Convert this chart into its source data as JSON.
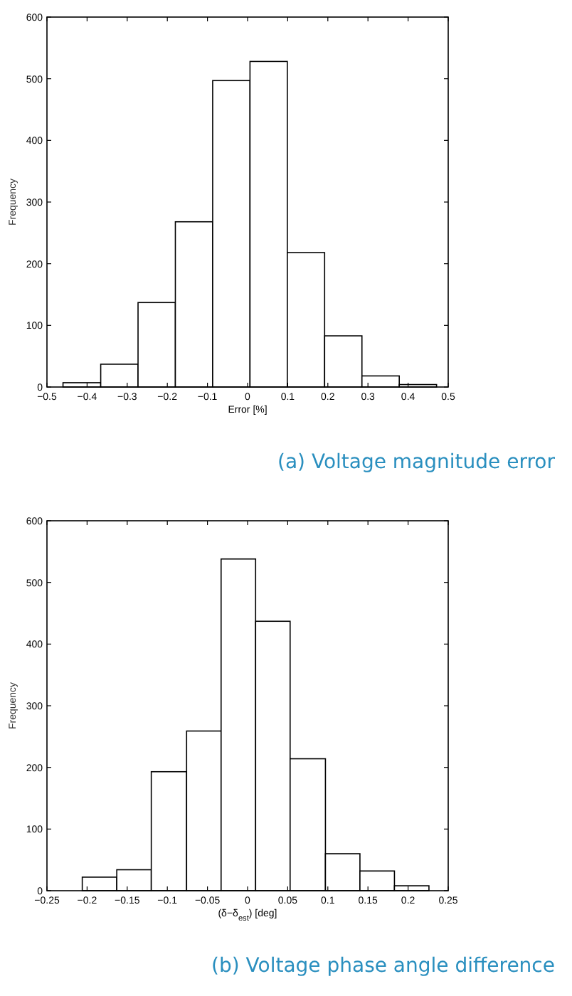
{
  "chart_data": [
    {
      "type": "histogram",
      "title": "(a) Voltage magnitude error",
      "xlabel": "Error [%]",
      "ylabel": "Frequency",
      "bins": [
        -0.46,
        -0.366,
        -0.273,
        -0.18,
        -0.087,
        0.006,
        0.099,
        0.192,
        0.285,
        0.378,
        0.471
      ],
      "values": [
        7,
        37,
        137,
        268,
        497,
        528,
        218,
        83,
        18,
        4
      ],
      "color": "#ffffff",
      "xlim": [
        -0.5,
        0.5
      ],
      "xticks": [
        -0.5,
        -0.4,
        -0.3,
        -0.2,
        -0.1,
        0,
        0.1,
        0.2,
        0.3,
        0.4,
        0.5
      ],
      "ylim": [
        0,
        600
      ],
      "yticks": [
        0,
        100,
        200,
        300,
        400,
        500,
        600
      ],
      "grid": false
    },
    {
      "type": "histogram",
      "title": "(b) Voltage phase angle difference",
      "xlabel": "(δ−δ$_{est}$) [deg]",
      "ylabel": "Frequency",
      "bins": [
        -0.206,
        -0.163,
        -0.12,
        -0.076,
        -0.033,
        0.01,
        0.053,
        0.097,
        0.14,
        0.183,
        0.226
      ],
      "values": [
        22,
        34,
        193,
        259,
        538,
        437,
        214,
        60,
        32,
        8
      ],
      "color": "#ffffff",
      "xlim": [
        -0.25,
        0.25
      ],
      "xticks": [
        -0.25,
        -0.2,
        -0.15,
        -0.1,
        -0.05,
        0,
        0.05,
        0.1,
        0.15,
        0.2,
        0.25
      ],
      "ylim": [
        0,
        600
      ],
      "yticks": [
        0,
        100,
        200,
        300,
        400,
        500,
        600
      ],
      "grid": false
    }
  ]
}
